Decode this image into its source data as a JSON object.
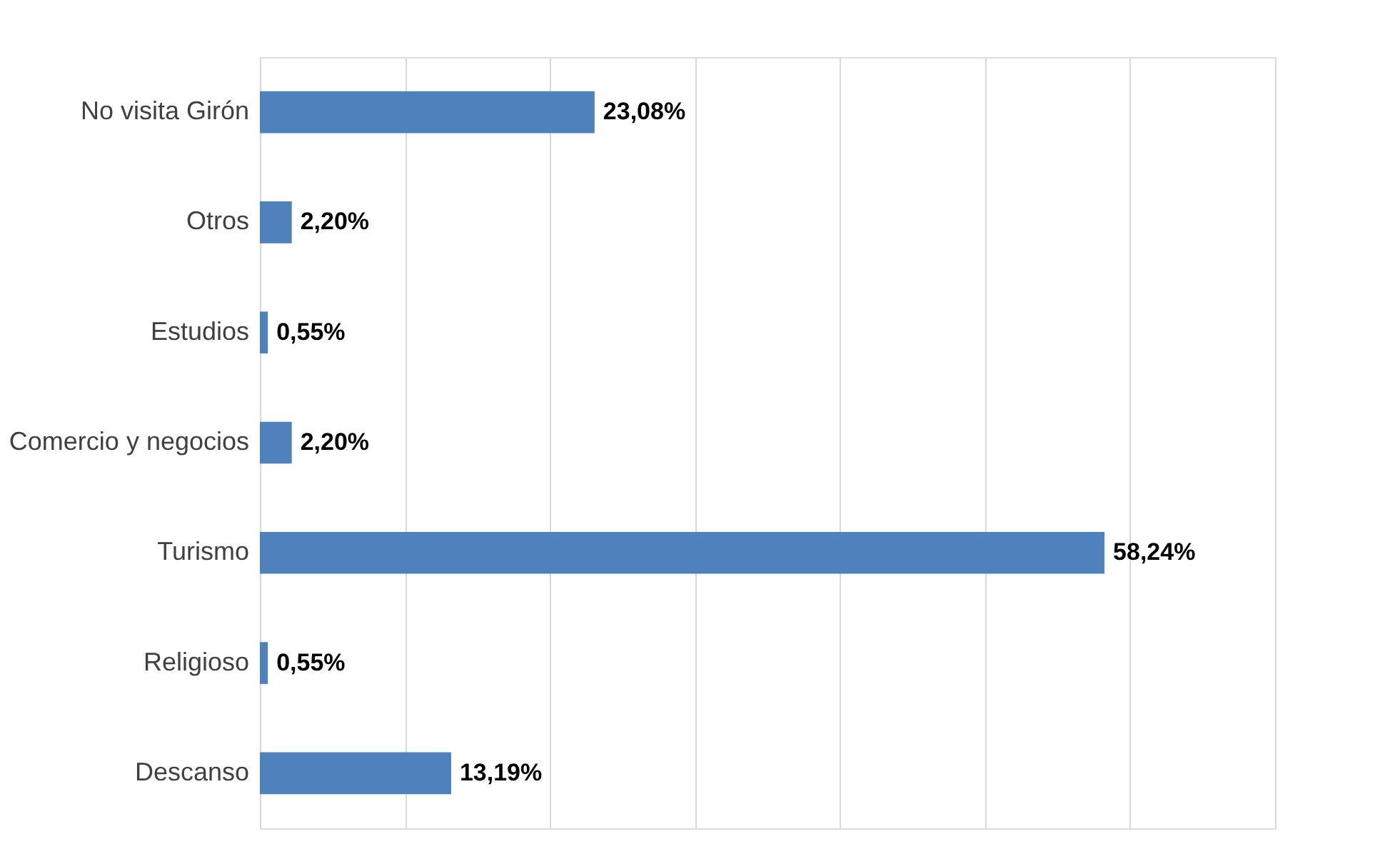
{
  "chart_data": {
    "type": "bar",
    "orientation": "horizontal",
    "categories": [
      "No visita Girón",
      "Otros",
      "Estudios",
      "Comercio y negocios",
      "Turismo",
      "Religioso",
      "Descanso"
    ],
    "values": [
      23.08,
      2.2,
      0.55,
      2.2,
      58.24,
      0.55,
      13.19
    ],
    "color": "#4f81bd",
    "value_labels": [
      "23,08%",
      "2,20%",
      "0,55%",
      "2,20%",
      "58,24%",
      "0,55%",
      "13,19%"
    ],
    "xlim": [
      0,
      70
    ],
    "xticks": [
      {
        "value": 0,
        "label": null
      },
      {
        "value": 10,
        "label": null
      },
      {
        "value": 20,
        "label": null
      },
      {
        "value": 30,
        "label": null
      },
      {
        "value": 40,
        "label": null
      },
      {
        "value": 50,
        "label": null
      },
      {
        "value": 60,
        "label": null
      },
      {
        "value": 70,
        "label": null
      }
    ],
    "grid": "x",
    "tick_labels": "y"
  }
}
